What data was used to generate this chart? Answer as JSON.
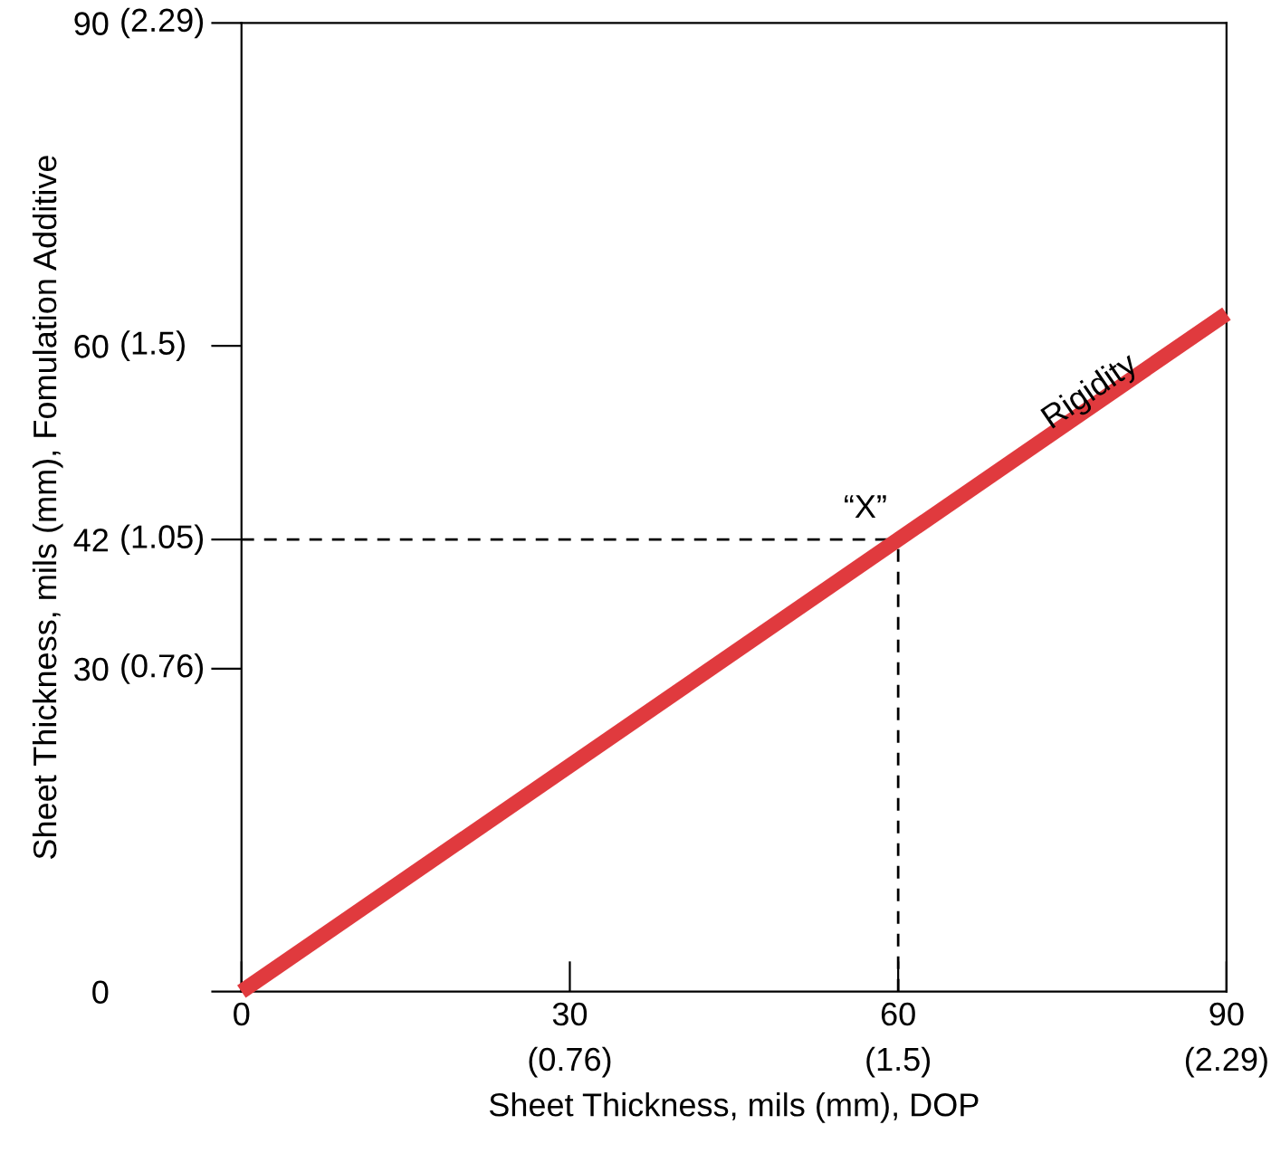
{
  "chart_data": {
    "type": "line",
    "xlabel": "Sheet Thickness, mils (mm), DOP",
    "ylabel": "Sheet Thickness, mils (mm), Fomulation Additive",
    "x": [
      0,
      90
    ],
    "series": [
      {
        "name": "Rigidity",
        "color": "#e03a3e",
        "values": [
          0,
          63
        ]
      }
    ],
    "xlim": [
      0,
      90
    ],
    "ylim": [
      0,
      90
    ],
    "xticks": [
      0,
      30,
      60,
      90
    ],
    "yticks": [
      0,
      30,
      42,
      60,
      90
    ],
    "ref_lines": [
      {
        "axis": "y",
        "value": 42,
        "color": "#000000",
        "line_style": "dashed"
      },
      {
        "axis": "x",
        "value": 60,
        "color": "#000000",
        "line_style": "dashed"
      }
    ],
    "annotations": [
      {
        "text": "“X”",
        "x": 57,
        "y": 42
      },
      "(0.76)",
      "(1.5)",
      "(2.29)",
      "(0.76)",
      "(1.05)",
      "(1.5)",
      "(2.29)"
    ],
    "grid": false,
    "legend": false,
    "marker": "none",
    "line_style": "solid"
  }
}
